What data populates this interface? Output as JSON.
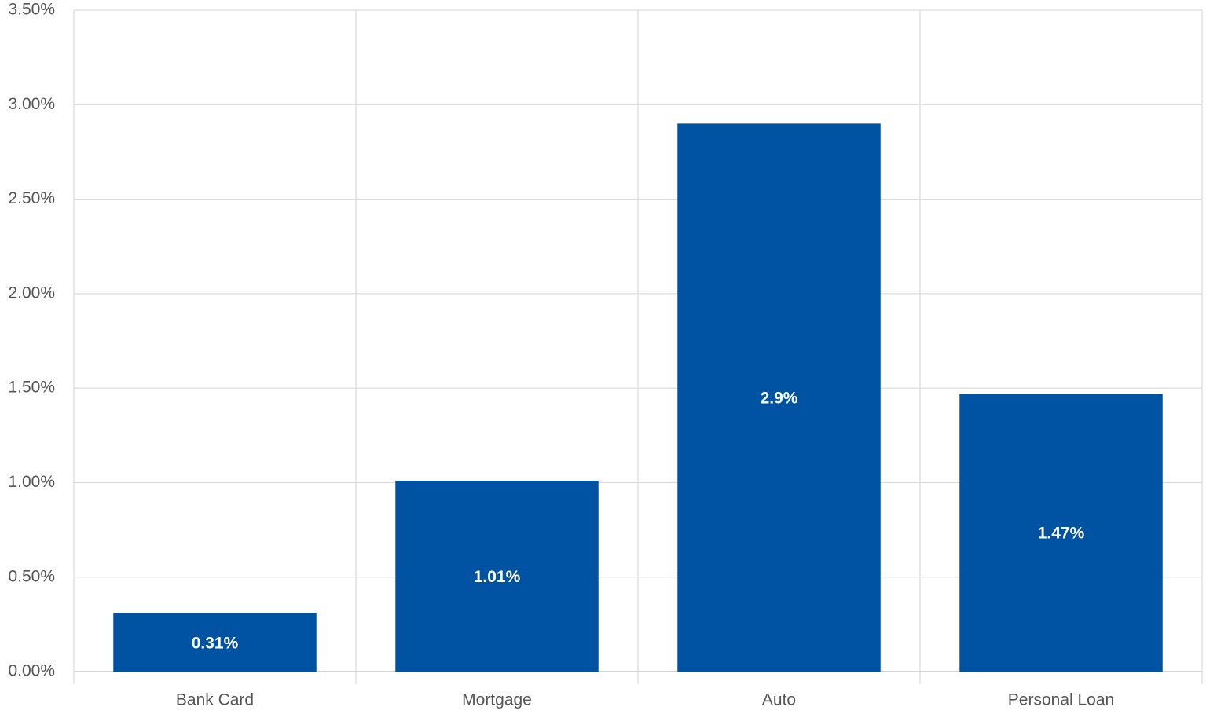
{
  "chart_data": {
    "type": "bar",
    "categories": [
      "Bank Card",
      "Mortgage",
      "Auto",
      "Personal Loan"
    ],
    "values": [
      0.31,
      1.01,
      2.9,
      1.47
    ],
    "value_labels": [
      "0.31%",
      "1.01%",
      "2.9%",
      "1.47%"
    ],
    "color": "#0052a2",
    "ylim": [
      0,
      3.5
    ],
    "yticks": [
      {
        "value": 0,
        "label": "0.00%"
      },
      {
        "value": 0.5,
        "label": "0.50%"
      },
      {
        "value": 1,
        "label": "1.00%"
      },
      {
        "value": 1.5,
        "label": "1.50%"
      },
      {
        "value": 2,
        "label": "2.00%"
      },
      {
        "value": 2.5,
        "label": "2.50%"
      },
      {
        "value": 3,
        "label": "3.00%"
      },
      {
        "value": 3.5,
        "label": "3.50%"
      }
    ],
    "grid": true
  }
}
